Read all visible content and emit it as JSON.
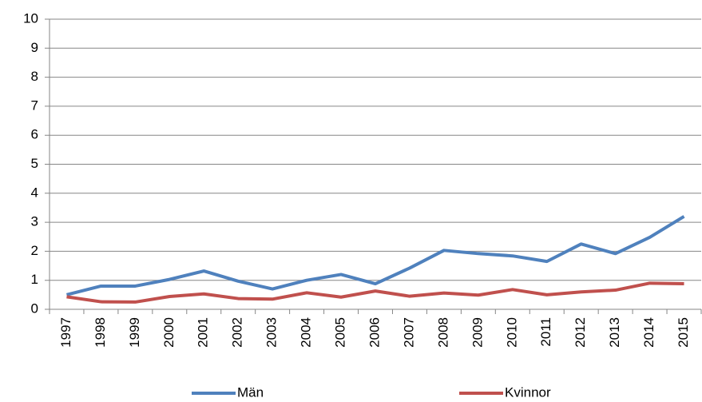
{
  "chart_data": {
    "type": "line",
    "categories": [
      "1997",
      "1998",
      "1999",
      "2000",
      "2001",
      "2002",
      "2003",
      "2004",
      "2005",
      "2006",
      "2007",
      "2008",
      "2009",
      "2010",
      "2011",
      "2012",
      "2013",
      "2014",
      "2015"
    ],
    "series": [
      {
        "name": "Män",
        "color": "#4f81bd",
        "values": [
          0.5,
          0.8,
          0.8,
          1.03,
          1.32,
          0.97,
          0.7,
          1.0,
          1.2,
          0.88,
          1.42,
          2.03,
          1.92,
          1.84,
          1.65,
          2.25,
          1.92,
          2.48,
          3.2
        ]
      },
      {
        "name": "Kvinnor",
        "color": "#c0504d",
        "values": [
          0.43,
          0.26,
          0.25,
          0.44,
          0.53,
          0.37,
          0.35,
          0.57,
          0.42,
          0.63,
          0.45,
          0.56,
          0.49,
          0.68,
          0.5,
          0.6,
          0.66,
          0.9,
          0.88
        ]
      }
    ],
    "ylim": [
      0,
      10
    ],
    "yticks": [
      0,
      1,
      2,
      3,
      4,
      5,
      6,
      7,
      8,
      9,
      10
    ],
    "grid": true,
    "legend": "bottom"
  }
}
